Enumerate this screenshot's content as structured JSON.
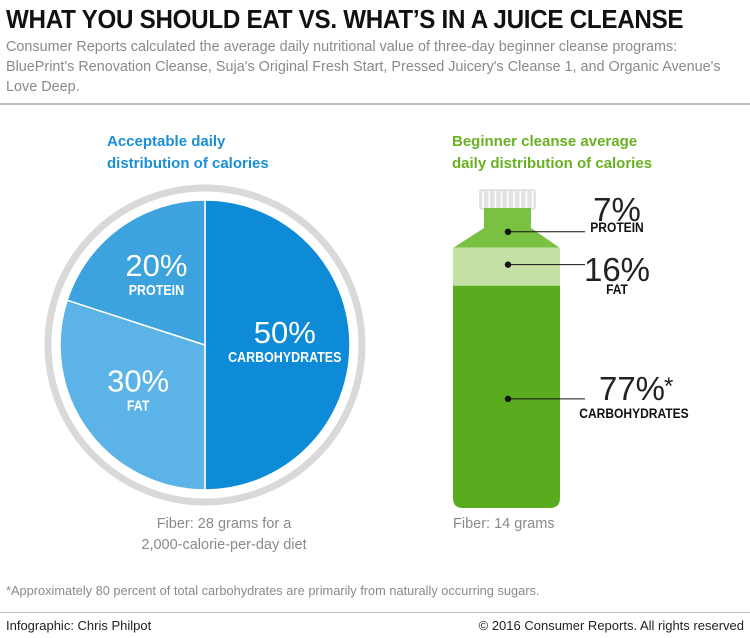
{
  "header": {
    "title": "WHAT YOU SHOULD EAT VS. WHAT’S IN A JUICE CLEANSE",
    "subtitle": "Consumer Reports calculated the average daily nutritional value of three-day beginner cleanse programs: BluePrint's Renovation Cleanse, Suja's Original Fresh Start, Pressed Juicery's Cleanse 1, and Organic Avenue's Love Deep."
  },
  "left_panel": {
    "heading_line1": "Acceptable daily",
    "heading_line2": "distribution of calories",
    "note_line1": "Fiber: 28 grams for a",
    "note_line2": "2,000-calorie-per-day diet"
  },
  "right_panel": {
    "heading_line1": "Beginner cleanse average",
    "heading_line2": "daily distribution of calories",
    "note": "Fiber: 14 grams",
    "asterisk": "*"
  },
  "footer": {
    "footnote": "*Approximately 80 percent of total carbohydrates are primarily from naturally occurring sugars.",
    "credit_left": "Infographic: Chris Philpot",
    "credit_right": "© 2016 Consumer Reports. All rights reserved"
  },
  "chart_data": [
    {
      "type": "pie",
      "title": "Acceptable daily distribution of calories",
      "slices": [
        {
          "label": "CARBOHYDRATES",
          "value": 50,
          "value_label": "50%",
          "color": "#0e8bd6"
        },
        {
          "label": "FAT",
          "value": 30,
          "value_label": "30%",
          "color": "#5cb3e7"
        },
        {
          "label": "PROTEIN",
          "value": 20,
          "value_label": "20%",
          "color": "#3da3df"
        }
      ],
      "ring_color": "#d9d9d9"
    },
    {
      "type": "bar",
      "subtype": "stacked-bottle",
      "title": "Beginner cleanse average daily distribution of calories",
      "segments": [
        {
          "label": "PROTEIN",
          "value": 7,
          "value_label": "7%",
          "color": "#7ac143"
        },
        {
          "label": "FAT",
          "value": 16,
          "value_label": "16%",
          "color": "#c5e0a5"
        },
        {
          "label": "CARBOHYDRATES",
          "value": 77,
          "value_label": "77%",
          "color": "#5aab1e"
        }
      ],
      "cap_color": "#e3e3e3"
    }
  ]
}
